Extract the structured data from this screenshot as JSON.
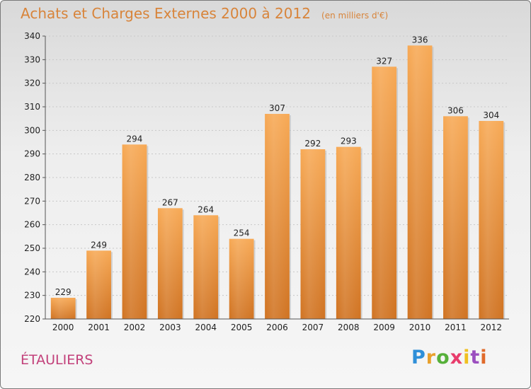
{
  "header": {
    "title": "Achats et Charges Externes 2000 à 2012",
    "subtitle": "(en milliers d'€)"
  },
  "footer": {
    "commune": "ÉTAULIERS",
    "logo": {
      "letters": [
        "P",
        "r",
        "o",
        "x",
        "i",
        "t",
        "i"
      ],
      "colors": [
        "#2f8fd8",
        "#e8a02c",
        "#56b03a",
        "#e83c6c",
        "#f0c020",
        "#9b4fbf",
        "#e06a2a"
      ]
    }
  },
  "colors": {
    "bar_top": "#f7a955",
    "bar_bottom": "#d07322",
    "accent": "#d8843a",
    "commune": "#c2407a"
  },
  "chart_data": {
    "type": "bar",
    "title": "Achats et Charges Externes 2000 à 2012",
    "subtitle": "(en milliers d'€)",
    "categories": [
      "2000",
      "2001",
      "2002",
      "2003",
      "2004",
      "2005",
      "2006",
      "2007",
      "2008",
      "2009",
      "2010",
      "2011",
      "2012"
    ],
    "values": [
      229,
      249,
      294,
      267,
      264,
      254,
      307,
      292,
      293,
      327,
      336,
      306,
      304
    ],
    "ylim": [
      220,
      340
    ],
    "yticks": [
      220,
      230,
      240,
      250,
      260,
      270,
      280,
      290,
      300,
      310,
      320,
      330,
      340
    ],
    "grid": true,
    "legend": "none"
  }
}
